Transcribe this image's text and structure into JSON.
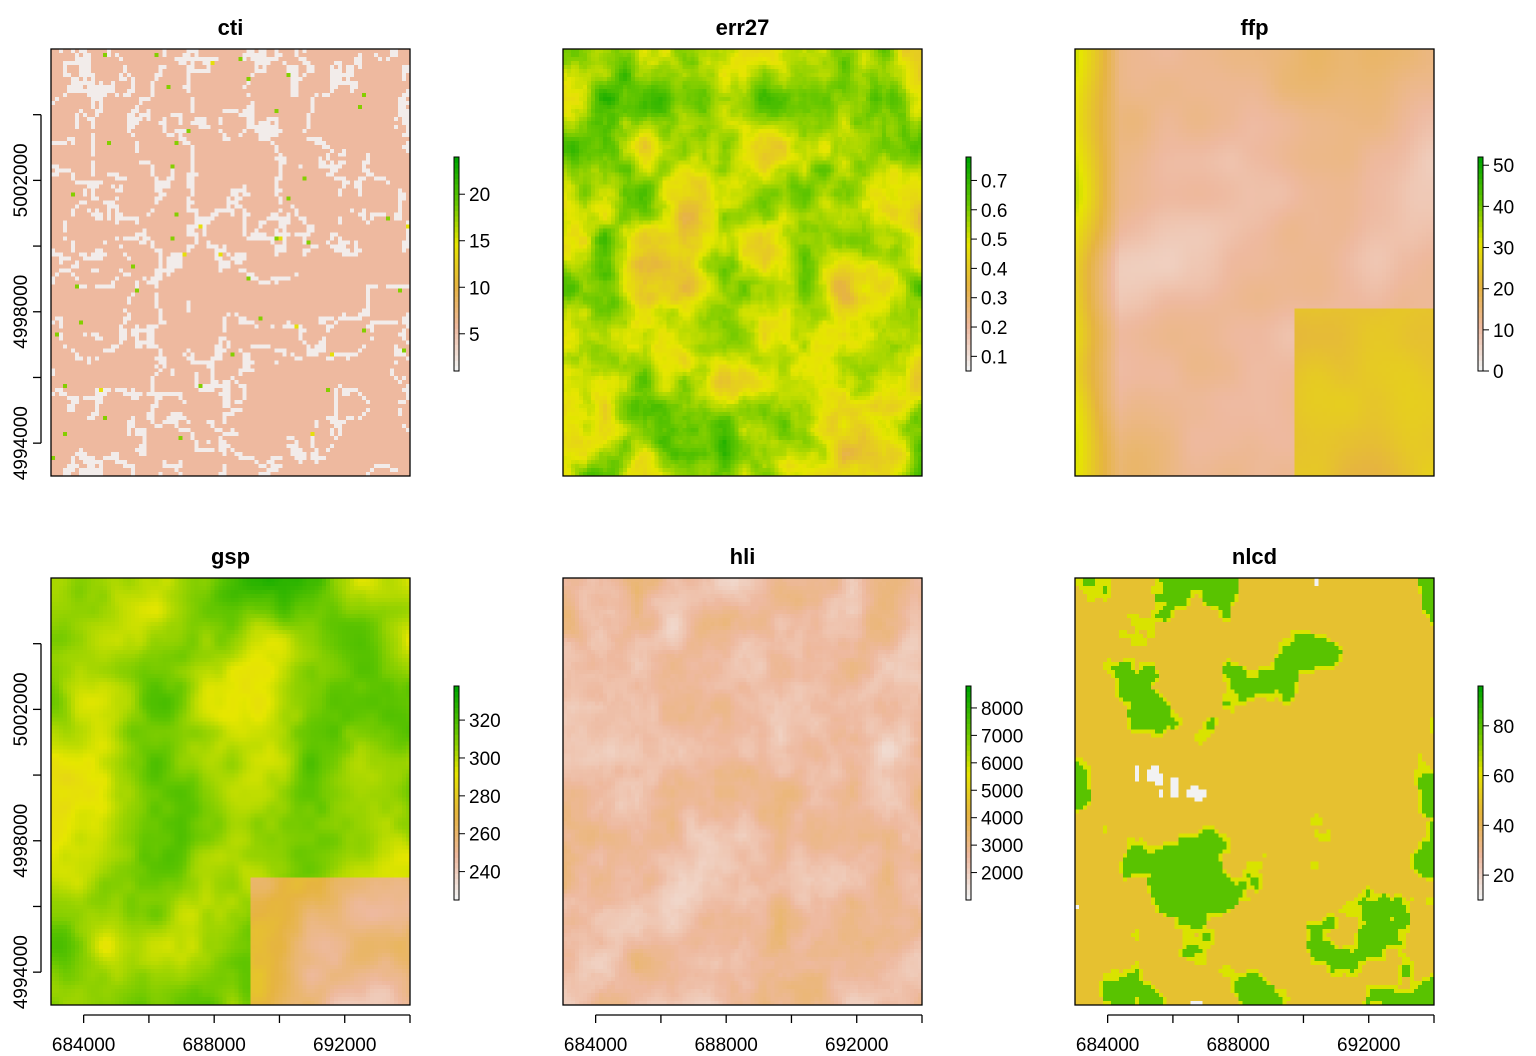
{
  "colors": {
    "ramp": [
      "#F2F2F2",
      "#EEB99F",
      "#E6B440",
      "#E6E600",
      "#63C600",
      "#00A600"
    ],
    "background": "#ffffff"
  },
  "chart_data": [
    {
      "type": "heatmap",
      "title": "cti",
      "legend_ticks": [
        "5",
        "10",
        "15",
        "20"
      ],
      "legend_range": [
        1,
        24
      ],
      "x_ticks": [
        "684000",
        "688000",
        "692000"
      ],
      "y_ticks": [
        "4994000",
        "4998000",
        "5002000"
      ],
      "xlim": [
        683000,
        694000
      ],
      "ylim": [
        4993000,
        5006000
      ],
      "show_x_labels": false,
      "show_y_labels": true,
      "texture": "valleys",
      "base_level": 0.22
    },
    {
      "type": "heatmap",
      "title": "err27",
      "legend_ticks": [
        "0.1",
        "0.2",
        "0.3",
        "0.4",
        "0.5",
        "0.6",
        "0.7"
      ],
      "legend_range": [
        0.05,
        0.78
      ],
      "x_ticks": [
        "684000",
        "688000",
        "692000"
      ],
      "y_ticks": [
        "4994000",
        "4998000",
        "5002000"
      ],
      "xlim": [
        683000,
        694000
      ],
      "ylim": [
        4993000,
        5006000
      ],
      "show_x_labels": false,
      "show_y_labels": false,
      "texture": "noise_green",
      "base_level": 0.6
    },
    {
      "type": "heatmap",
      "title": "ffp",
      "legend_ticks": [
        "0",
        "10",
        "20",
        "30",
        "40",
        "50"
      ],
      "legend_range": [
        0,
        52
      ],
      "x_ticks": [
        "684000",
        "688000",
        "692000"
      ],
      "y_ticks": [
        "4994000",
        "4998000",
        "5002000"
      ],
      "xlim": [
        683000,
        694000
      ],
      "ylim": [
        4993000,
        5006000
      ],
      "show_x_labels": false,
      "show_y_labels": false,
      "texture": "smooth_low",
      "base_level": 0.3
    },
    {
      "type": "heatmap",
      "title": "gsp",
      "legend_ticks": [
        "240",
        "260",
        "280",
        "300",
        "320"
      ],
      "legend_range": [
        225,
        338
      ],
      "x_ticks": [
        "684000",
        "688000",
        "692000"
      ],
      "y_ticks": [
        "4994000",
        "4998000",
        "5002000"
      ],
      "xlim": [
        683000,
        694000
      ],
      "ylim": [
        4993000,
        5006000
      ],
      "show_x_labels": true,
      "show_y_labels": true,
      "texture": "smooth_high",
      "base_level": 0.5
    },
    {
      "type": "heatmap",
      "title": "hli",
      "legend_ticks": [
        "2000",
        "3000",
        "4000",
        "5000",
        "6000",
        "7000",
        "8000"
      ],
      "legend_range": [
        1000,
        8800
      ],
      "x_ticks": [
        "684000",
        "688000",
        "692000"
      ],
      "y_ticks": [
        "4994000",
        "4998000",
        "5002000"
      ],
      "xlim": [
        683000,
        694000
      ],
      "ylim": [
        4993000,
        5006000
      ],
      "show_x_labels": true,
      "show_y_labels": false,
      "texture": "shaded",
      "base_level": 0.15
    },
    {
      "type": "heatmap",
      "title": "nlcd",
      "legend_ticks": [
        "20",
        "40",
        "60",
        "80"
      ],
      "legend_range": [
        10,
        96
      ],
      "x_ticks": [
        "684000",
        "688000",
        "692000"
      ],
      "y_ticks": [
        "4994000",
        "4998000",
        "5002000"
      ],
      "xlim": [
        683000,
        694000
      ],
      "ylim": [
        4993000,
        5006000
      ],
      "show_x_labels": true,
      "show_y_labels": false,
      "texture": "categorical",
      "base_level": 0.45
    }
  ]
}
